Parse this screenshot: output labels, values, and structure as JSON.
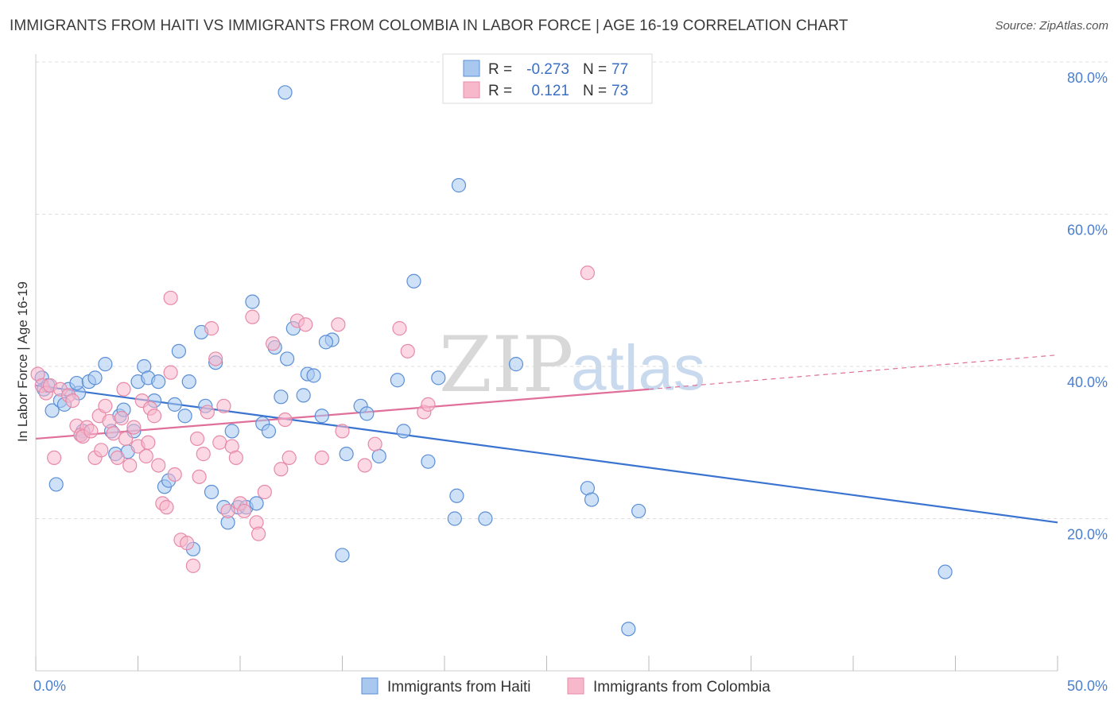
{
  "title": "IMMIGRANTS FROM HAITI VS IMMIGRANTS FROM COLOMBIA IN LABOR FORCE | AGE 16-19 CORRELATION CHART",
  "source": "Source: ZipAtlas.com",
  "watermark": {
    "zip": "ZIP",
    "atlas": "atlas"
  },
  "legend_box": {
    "rows": [
      {
        "r_label": "R = ",
        "r_value": "-0.273",
        "n_label": "N = ",
        "n_value": "77"
      },
      {
        "r_label": "R = ",
        "r_value": "0.121",
        "n_label": "N = ",
        "n_value": "73"
      }
    ]
  },
  "colors": {
    "haiti_fill": "#a8c8f0",
    "haiti_stroke": "#5b8fd6",
    "haiti_line": "#3a74d0",
    "colombia_fill": "#f7b8cc",
    "colombia_stroke": "#e78aa8",
    "colombia_line": "#e0709a",
    "grid": "#dddddd",
    "tick_text": "#4a7fcf"
  },
  "chart_data": {
    "type": "scatter",
    "title": "IMMIGRANTS FROM HAITI VS IMMIGRANTS FROM COLOMBIA IN LABOR FORCE | AGE 16-19 CORRELATION CHART",
    "xlabel": "",
    "ylabel": "In Labor Force | Age 16-19",
    "xlim": [
      0,
      50
    ],
    "ylim": [
      0,
      82
    ],
    "x_tick_labels": [
      "0.0%",
      "50.0%"
    ],
    "y_ticks": [
      20,
      40,
      60,
      80
    ],
    "y_tick_labels": [
      "20.0%",
      "40.0%",
      "60.0%",
      "80.0%"
    ],
    "legend": [
      "Immigrants from Haiti",
      "Immigrants from Colombia"
    ],
    "series": [
      {
        "name": "Immigrants from Haiti",
        "r": -0.273,
        "n": 77,
        "trend": {
          "x": [
            0,
            50
          ],
          "y": [
            37.5,
            19.5
          ]
        },
        "points": [
          [
            0.3,
            38.5
          ],
          [
            0.4,
            37
          ],
          [
            0.6,
            37.5
          ],
          [
            0.8,
            34.2
          ],
          [
            1.0,
            24.5
          ],
          [
            1.2,
            35.5
          ],
          [
            1.4,
            35
          ],
          [
            1.6,
            37
          ],
          [
            2.1,
            36.5
          ],
          [
            2.0,
            37.8
          ],
          [
            2.3,
            31.5
          ],
          [
            2.6,
            38
          ],
          [
            2.9,
            38.5
          ],
          [
            2.2,
            31
          ],
          [
            3.4,
            40.3
          ],
          [
            3.7,
            31.5
          ],
          [
            3.9,
            28.5
          ],
          [
            4.1,
            33.5
          ],
          [
            4.3,
            34.3
          ],
          [
            4.5,
            28.8
          ],
          [
            4.8,
            31.5
          ],
          [
            5.0,
            38
          ],
          [
            5.3,
            40
          ],
          [
            5.5,
            38.5
          ],
          [
            5.8,
            35.5
          ],
          [
            6.0,
            38
          ],
          [
            6.3,
            24.2
          ],
          [
            6.5,
            25
          ],
          [
            6.8,
            35
          ],
          [
            7.0,
            42
          ],
          [
            7.3,
            33.5
          ],
          [
            7.5,
            38
          ],
          [
            7.7,
            16
          ],
          [
            8.1,
            44.5
          ],
          [
            8.3,
            34.8
          ],
          [
            8.6,
            23.5
          ],
          [
            8.8,
            40.5
          ],
          [
            9.2,
            21.5
          ],
          [
            9.4,
            19.5
          ],
          [
            9.6,
            31.5
          ],
          [
            9.9,
            21.5
          ],
          [
            10.3,
            21.5
          ],
          [
            10.6,
            48.5
          ],
          [
            10.8,
            22
          ],
          [
            11.1,
            32.5
          ],
          [
            11.4,
            31.5
          ],
          [
            11.7,
            42.5
          ],
          [
            12.0,
            36
          ],
          [
            12.3,
            41
          ],
          [
            12.6,
            45
          ],
          [
            12.2,
            76
          ],
          [
            13.1,
            36.2
          ],
          [
            13.3,
            39
          ],
          [
            13.6,
            38.8
          ],
          [
            14.0,
            33.5
          ],
          [
            14.5,
            43.5
          ],
          [
            14.2,
            43.2
          ],
          [
            15.2,
            28.5
          ],
          [
            15.0,
            15.2
          ],
          [
            15.9,
            34.8
          ],
          [
            16.2,
            33.8
          ],
          [
            16.8,
            28.2
          ],
          [
            17.7,
            38.2
          ],
          [
            18.0,
            31.5
          ],
          [
            18.5,
            51.2
          ],
          [
            19.2,
            27.5
          ],
          [
            19.7,
            38.5
          ],
          [
            20.6,
            23
          ],
          [
            20.5,
            20
          ],
          [
            20.7,
            63.8
          ],
          [
            22.0,
            20
          ],
          [
            23.5,
            40.3
          ],
          [
            27.0,
            24
          ],
          [
            27.2,
            22.5
          ],
          [
            29.5,
            21
          ],
          [
            29.0,
            5.5
          ],
          [
            44.5,
            13
          ]
        ]
      },
      {
        "name": "Immigrants from Colombia",
        "r": 0.121,
        "n": 73,
        "trend": {
          "x": [
            0,
            30
          ],
          "y": [
            30.5,
            37
          ]
        },
        "trend_dashed": {
          "x": [
            30,
            50
          ],
          "y": [
            37,
            41.5
          ]
        },
        "points": [
          [
            0.1,
            39
          ],
          [
            0.3,
            37.5
          ],
          [
            0.5,
            36.5
          ],
          [
            0.7,
            37.5
          ],
          [
            0.9,
            28
          ],
          [
            1.2,
            37
          ],
          [
            1.6,
            36.2
          ],
          [
            1.8,
            35.5
          ],
          [
            2.0,
            32.2
          ],
          [
            2.2,
            31
          ],
          [
            2.5,
            32
          ],
          [
            2.3,
            30.8
          ],
          [
            2.7,
            31.5
          ],
          [
            2.9,
            28
          ],
          [
            3.1,
            33.5
          ],
          [
            3.2,
            29
          ],
          [
            3.4,
            34.8
          ],
          [
            3.6,
            32.8
          ],
          [
            3.8,
            31.2
          ],
          [
            4.0,
            28
          ],
          [
            4.2,
            33.2
          ],
          [
            4.4,
            30.5
          ],
          [
            4.3,
            37
          ],
          [
            4.6,
            27
          ],
          [
            4.8,
            32
          ],
          [
            5.0,
            29.5
          ],
          [
            5.2,
            35.5
          ],
          [
            5.4,
            28.2
          ],
          [
            5.6,
            34.5
          ],
          [
            5.5,
            30
          ],
          [
            5.8,
            33.5
          ],
          [
            6.0,
            27
          ],
          [
            6.2,
            22
          ],
          [
            6.4,
            21.5
          ],
          [
            6.6,
            39.2
          ],
          [
            6.8,
            25.8
          ],
          [
            6.6,
            49
          ],
          [
            7.1,
            17.2
          ],
          [
            7.4,
            16.8
          ],
          [
            7.7,
            13.8
          ],
          [
            7.9,
            30.5
          ],
          [
            8.0,
            25.5
          ],
          [
            8.2,
            28.5
          ],
          [
            8.6,
            45
          ],
          [
            8.8,
            41
          ],
          [
            8.4,
            34
          ],
          [
            9.0,
            30
          ],
          [
            9.2,
            34.8
          ],
          [
            9.4,
            21
          ],
          [
            9.6,
            29.5
          ],
          [
            9.8,
            28
          ],
          [
            10.0,
            22
          ],
          [
            10.2,
            21
          ],
          [
            10.6,
            46.5
          ],
          [
            10.8,
            19.5
          ],
          [
            10.9,
            18
          ],
          [
            11.2,
            23.5
          ],
          [
            11.6,
            43
          ],
          [
            12.0,
            26.5
          ],
          [
            12.2,
            33
          ],
          [
            12.4,
            28
          ],
          [
            12.8,
            46
          ],
          [
            13.2,
            45.5
          ],
          [
            14.0,
            28
          ],
          [
            14.8,
            45.5
          ],
          [
            15.0,
            31.5
          ],
          [
            16.1,
            27
          ],
          [
            16.6,
            29.8
          ],
          [
            17.8,
            45
          ],
          [
            18.2,
            42
          ],
          [
            19.0,
            34
          ],
          [
            19.2,
            35
          ],
          [
            27.0,
            52.3
          ]
        ]
      }
    ]
  }
}
